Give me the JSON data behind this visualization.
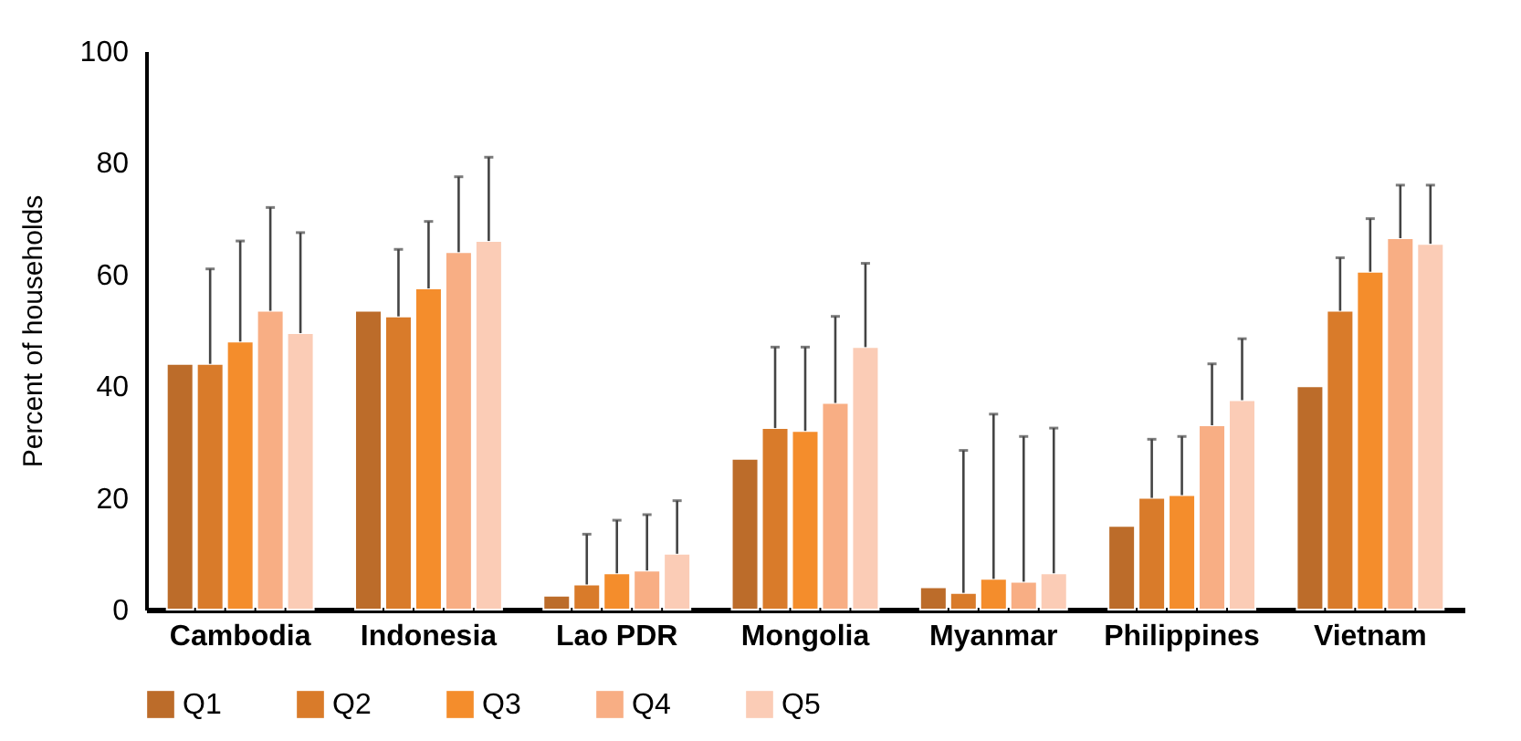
{
  "chart_data": {
    "type": "bar",
    "ylabel": "Percent of households",
    "categories": [
      "Cambodia",
      "Indonesia",
      "Lao PDR",
      "Mongolia",
      "Myanmar",
      "Philippines",
      "Vietnam"
    ],
    "series": [
      {
        "name": "Q1",
        "color": "#bc6c2a",
        "values": [
          44,
          53.5,
          2.5,
          27,
          4,
          15,
          40
        ]
      },
      {
        "name": "Q2",
        "color": "#d97b2a",
        "values": [
          44,
          52.5,
          4.5,
          32.5,
          3,
          20,
          53.5
        ],
        "errors": [
          [
            44,
            61
          ],
          [
            52.5,
            64.5
          ],
          [
            4.5,
            13.5
          ],
          [
            32.5,
            47
          ],
          [
            3,
            28.5
          ],
          [
            20,
            30.5
          ],
          [
            53.5,
            63
          ]
        ]
      },
      {
        "name": "Q3",
        "color": "#f48d2c",
        "values": [
          48,
          57.5,
          6.5,
          32,
          5.5,
          20.5,
          60.5
        ],
        "errors": [
          [
            48,
            66
          ],
          [
            57.5,
            69.5
          ],
          [
            6.5,
            16
          ],
          [
            32,
            47
          ],
          [
            5.5,
            35
          ],
          [
            20.5,
            31
          ],
          [
            60.5,
            70
          ]
        ]
      },
      {
        "name": "Q4",
        "color": "#f8ae84",
        "values": [
          53.5,
          64,
          7,
          37,
          5,
          33,
          66.5
        ],
        "errors": [
          [
            53.5,
            72
          ],
          [
            64,
            77.5
          ],
          [
            7,
            17
          ],
          [
            37,
            52.5
          ],
          [
            5,
            31
          ],
          [
            33,
            44
          ],
          [
            66.5,
            76
          ]
        ]
      },
      {
        "name": "Q5",
        "color": "#fbccb6",
        "values": [
          49.5,
          66,
          10,
          47,
          6.5,
          37.5,
          65.5
        ],
        "errors": [
          [
            49.5,
            67.5
          ],
          [
            66,
            81
          ],
          [
            10,
            19.5
          ],
          [
            47,
            62
          ],
          [
            6.5,
            32.5
          ],
          [
            37.5,
            48.5
          ],
          [
            65.5,
            76
          ]
        ]
      }
    ],
    "ylim": [
      0,
      100
    ],
    "yticks": [
      0,
      20,
      40,
      60,
      80,
      100
    ],
    "grid": false,
    "legend": "bottom"
  }
}
